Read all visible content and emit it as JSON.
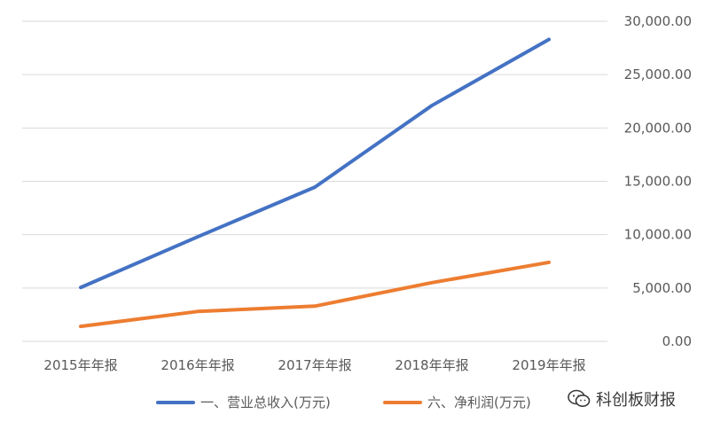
{
  "chart_data": {
    "type": "line",
    "categories": [
      "2015年年报",
      "2016年年报",
      "2017年年报",
      "2018年年报",
      "2019年年报"
    ],
    "series": [
      {
        "name": "一、营业总收入(万元)",
        "color": "#4472C4",
        "values": [
          5050,
          9800,
          14450,
          22100,
          28300
        ]
      },
      {
        "name": "六、净利润(万元)",
        "color": "#ED7D31",
        "values": [
          1400,
          2800,
          3300,
          5500,
          7400
        ]
      }
    ],
    "y_ticks": [
      "0.00",
      "5,000.00",
      "10,000.00",
      "15,000.00",
      "20,000.00",
      "25,000.00",
      "30,000.00"
    ],
    "ylim": [
      0,
      30000
    ],
    "y_axis_side": "right",
    "grid": true,
    "legend": "bottom"
  },
  "watermark": {
    "text": "科创板财报",
    "icon": "wechat-icon"
  }
}
